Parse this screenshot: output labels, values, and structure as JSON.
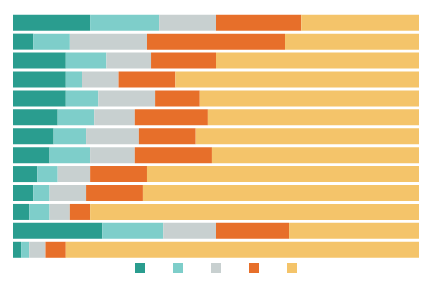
{
  "chart_data": {
    "type": "bar",
    "orientation": "horizontal",
    "stacked": true,
    "categories": [
      null,
      null,
      null,
      null,
      null,
      null,
      null,
      null,
      null,
      null,
      null,
      null,
      null
    ],
    "series": [
      {
        "color": "#2a9d8f",
        "values": [
          19,
          5,
          13,
          13,
          13,
          11,
          10,
          9,
          6,
          5,
          4,
          22,
          2
        ]
      },
      {
        "color": "#7ececa",
        "values": [
          17,
          9,
          10,
          4,
          8,
          9,
          8,
          10,
          5,
          4,
          5,
          15,
          2
        ]
      },
      {
        "color": "#c8d0d0",
        "values": [
          14,
          19,
          11,
          9,
          14,
          10,
          13,
          11,
          8,
          9,
          5,
          13,
          4
        ]
      },
      {
        "color": "#e76f2a",
        "values": [
          21,
          34,
          16,
          14,
          11,
          18,
          14,
          19,
          14,
          14,
          5,
          18,
          5
        ]
      },
      {
        "color": "#f4c46a",
        "values": [
          29,
          33,
          50,
          60,
          54,
          52,
          55,
          51,
          67,
          68,
          81,
          32,
          87
        ]
      }
    ],
    "xlim": [
      0,
      100
    ],
    "tick_labels": false,
    "legend": "bottom"
  }
}
